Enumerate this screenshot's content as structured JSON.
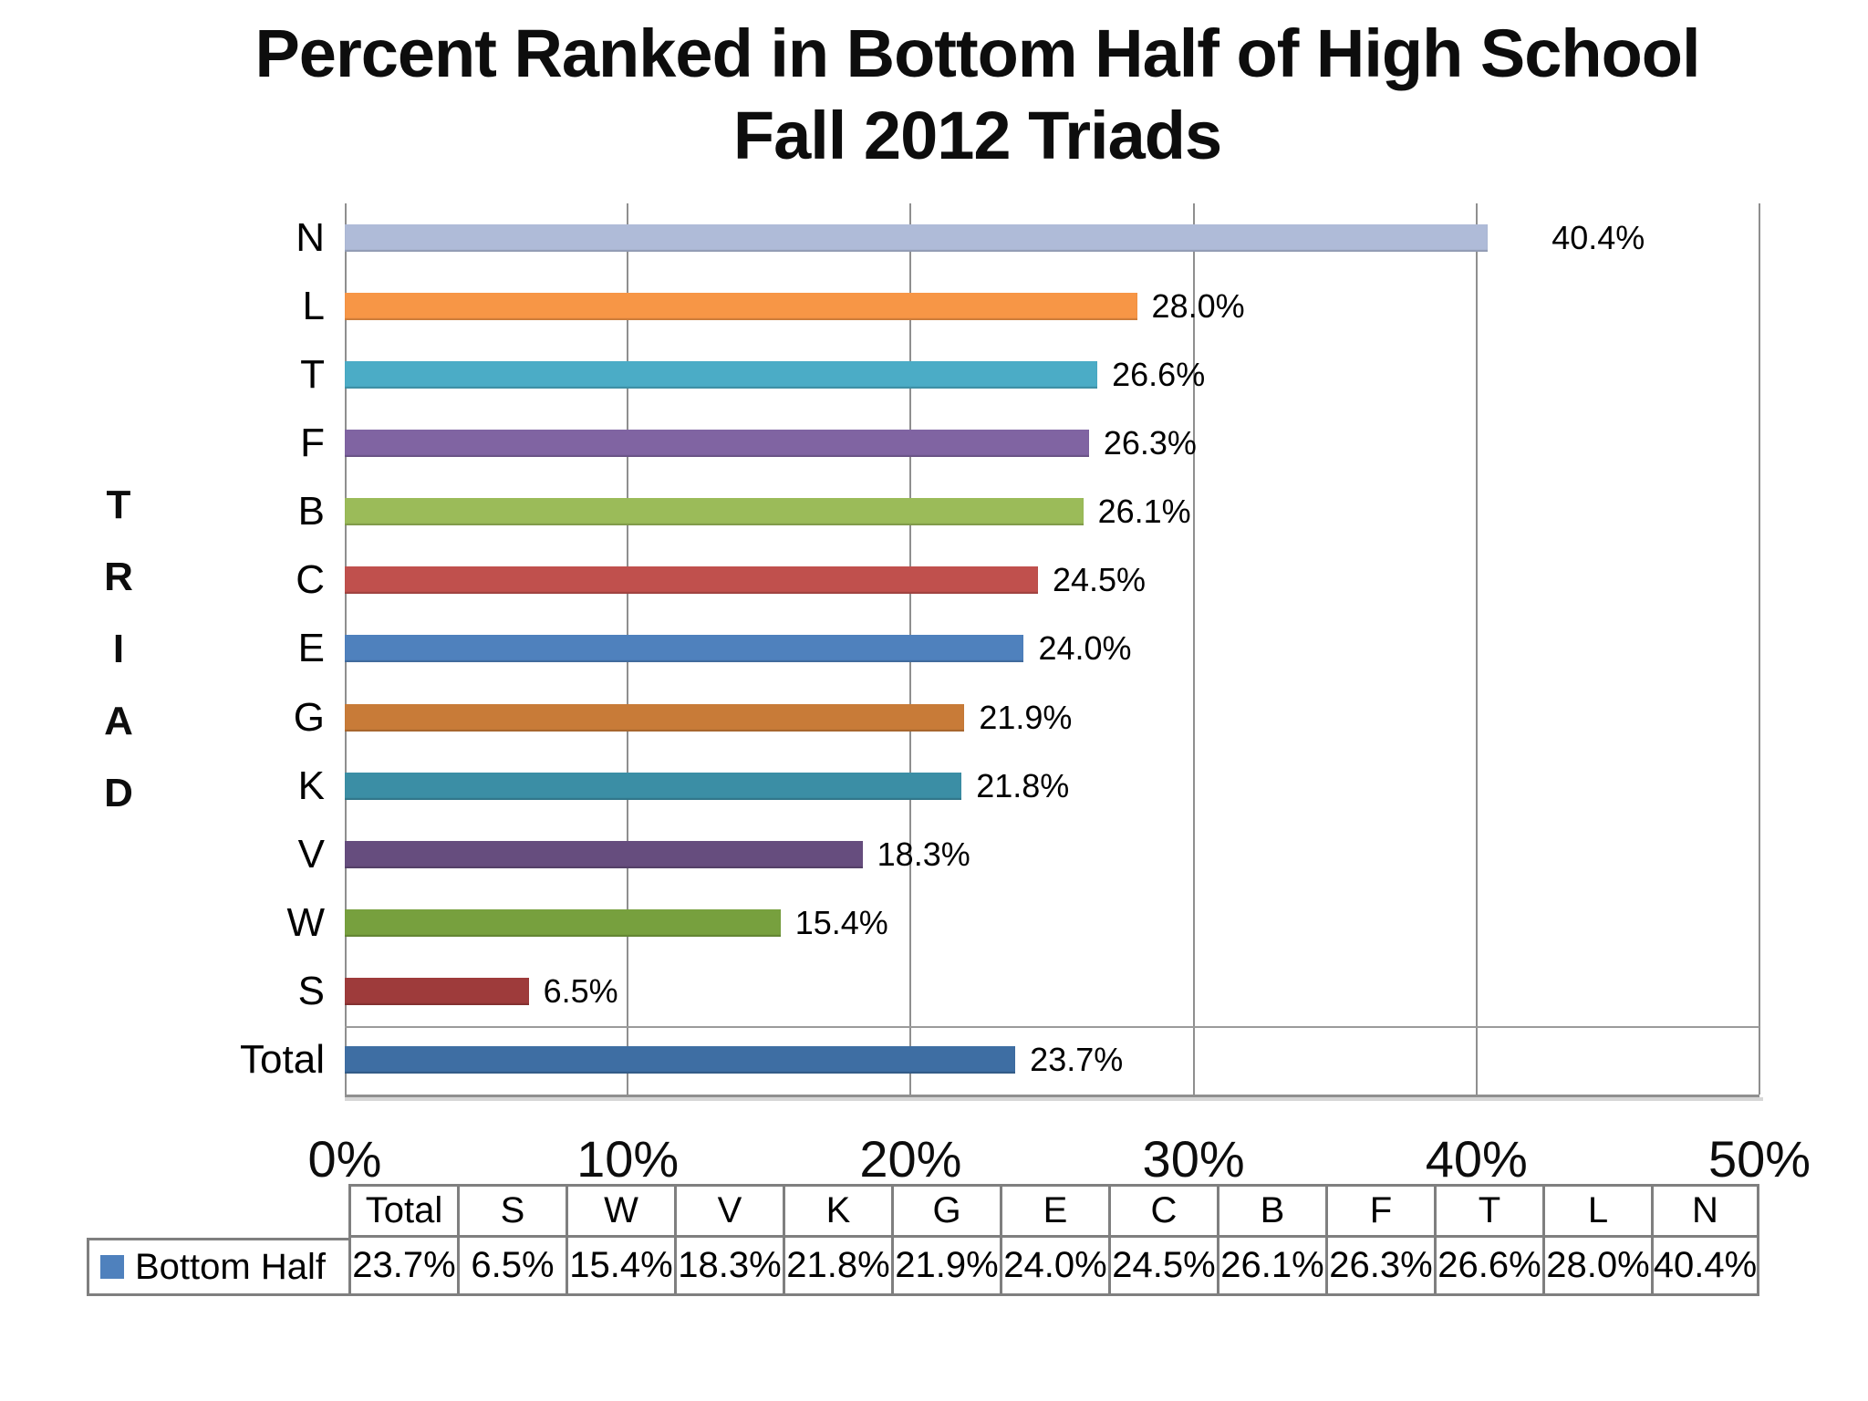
{
  "title": {
    "line1": "Percent Ranked in Bottom Half of High School",
    "line2": "Fall 2012 Triads"
  },
  "chart_data": {
    "type": "bar",
    "orientation": "horizontal",
    "title": "Percent Ranked in Bottom Half of High School Fall 2012 Triads",
    "ylabel": "TRIAD",
    "xlabel": "",
    "xlim": [
      0,
      50
    ],
    "x_ticks": [
      "0%",
      "10%",
      "20%",
      "30%",
      "40%",
      "50%"
    ],
    "grid": "vertical",
    "legend_position": "bottom-table",
    "series_name": "Bottom Half",
    "categories": [
      "N",
      "L",
      "T",
      "F",
      "B",
      "C",
      "E",
      "G",
      "K",
      "V",
      "W",
      "S",
      "Total"
    ],
    "points": [
      {
        "name": "N",
        "value": 40.4,
        "label": "40.4%",
        "color": "#AFBBD8",
        "label_gap": 70
      },
      {
        "name": "L",
        "value": 28.0,
        "label": "28.0%",
        "color": "#F79646"
      },
      {
        "name": "T",
        "value": 26.6,
        "label": "26.6%",
        "color": "#4BACC6"
      },
      {
        "name": "F",
        "value": 26.3,
        "label": "26.3%",
        "color": "#8064A2"
      },
      {
        "name": "B",
        "value": 26.1,
        "label": "26.1%",
        "color": "#9BBB59"
      },
      {
        "name": "C",
        "value": 24.5,
        "label": "24.5%",
        "color": "#C0504D"
      },
      {
        "name": "E",
        "value": 24.0,
        "label": "24.0%",
        "color": "#4F81BD"
      },
      {
        "name": "G",
        "value": 21.9,
        "label": "21.9%",
        "color": "#C87B38"
      },
      {
        "name": "K",
        "value": 21.8,
        "label": "21.8%",
        "color": "#3B8EA5"
      },
      {
        "name": "V",
        "value": 18.3,
        "label": "18.3%",
        "color": "#664D7E"
      },
      {
        "name": "W",
        "value": 15.4,
        "label": "15.4%",
        "color": "#77A03E"
      },
      {
        "name": "S",
        "value": 6.5,
        "label": "6.5%",
        "color": "#9E3B3B"
      },
      {
        "name": "Total",
        "value": 23.7,
        "label": "23.7%",
        "color": "#3E6EA3"
      }
    ],
    "separator_above_category": "Total"
  },
  "table": {
    "legend": {
      "label": "Bottom Half",
      "color": "#4F81BD"
    },
    "columns": [
      {
        "header": "Total",
        "value": "23.7%"
      },
      {
        "header": "S",
        "value": "6.5%"
      },
      {
        "header": "W",
        "value": "15.4%"
      },
      {
        "header": "V",
        "value": "18.3%"
      },
      {
        "header": "K",
        "value": "21.8%"
      },
      {
        "header": "G",
        "value": "21.9%"
      },
      {
        "header": "E",
        "value": "24.0%"
      },
      {
        "header": "C",
        "value": "24.5%"
      },
      {
        "header": "B",
        "value": "26.1%"
      },
      {
        "header": "F",
        "value": "26.3%"
      },
      {
        "header": "T",
        "value": "26.6%"
      },
      {
        "header": "L",
        "value": "28.0%"
      },
      {
        "header": "N",
        "value": "40.4%"
      }
    ]
  }
}
